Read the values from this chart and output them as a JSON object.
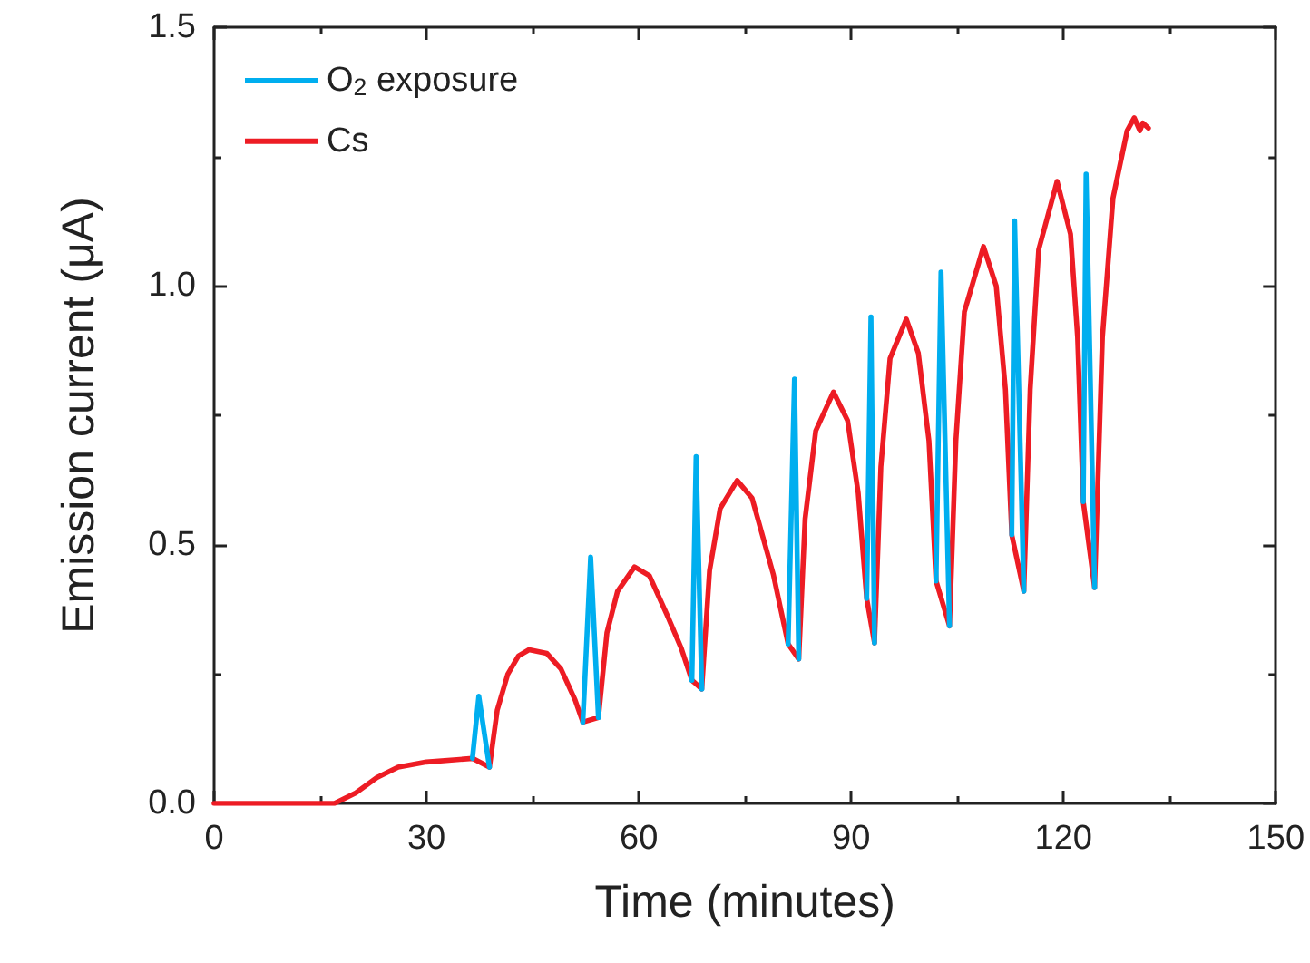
{
  "chart_data": {
    "type": "line",
    "xlabel": "Time (minutes)",
    "ylabel": "Emission current (μA)",
    "xlim": [
      0,
      150
    ],
    "xticks": [
      0,
      30,
      60,
      90,
      120,
      150
    ],
    "ylim": [
      0,
      1.5
    ],
    "yticks": [
      {
        "value": 0,
        "label": "0.0"
      },
      {
        "value": 0.5,
        "label": "0.5"
      },
      {
        "value": 1,
        "label": "1.0"
      },
      {
        "value": 1.5,
        "label": "1.5"
      }
    ],
    "grid": false,
    "legend": "top left",
    "marker": "none",
    "line_style": "solid",
    "series": [
      {
        "name": "O$_{2}$ exposure",
        "color": "#00aeef",
        "x": [
          36.5,
          37.4,
          38.9,
          45,
          52.1,
          53.2,
          54.3,
          60,
          67.5,
          68.1,
          68.9,
          75,
          81.1,
          82,
          82.6,
          88,
          92.2,
          92.8,
          93.3,
          98,
          102,
          102.7,
          103.9,
          108,
          112.7,
          113.1,
          114.4,
          119,
          122.8,
          123.2,
          124.4
        ],
        "values": [
          0.087,
          0.207,
          0.07,
          null,
          0.157,
          0.476,
          0.166,
          null,
          0.238,
          0.67,
          0.221,
          null,
          0.308,
          0.82,
          0.279,
          null,
          0.396,
          0.94,
          0.31,
          null,
          0.43,
          1.027,
          0.343,
          null,
          0.519,
          1.126,
          0.41,
          null,
          0.583,
          1.216,
          0.417
        ]
      },
      {
        "name": "Cs",
        "color": "#ed1c24",
        "x": [
          0,
          17,
          20,
          23,
          26,
          30,
          36.5,
          38.9,
          40,
          41.5,
          43,
          44.5,
          47,
          49,
          51,
          52.1,
          54.3,
          55.5,
          57,
          59.4,
          61.5,
          64.1,
          66,
          67.5,
          68.9,
          70,
          71.5,
          73.9,
          76,
          79,
          81.1,
          82.6,
          83.5,
          85,
          87.5,
          89.5,
          91,
          92.2,
          93.3,
          94.2,
          95.5,
          97.8,
          99.5,
          101,
          102,
          103.9,
          104.8,
          106,
          108.7,
          110.5,
          111.8,
          112.7,
          114.4,
          115.3,
          116.5,
          119.1,
          121,
          122,
          122.8,
          124.4,
          125.5,
          127,
          129,
          130,
          130.8,
          131.2,
          132
        ],
        "values": [
          0,
          0,
          0.02,
          0.05,
          0.07,
          0.08,
          0.087,
          0.07,
          0.18,
          0.25,
          0.285,
          0.297,
          0.29,
          0.26,
          0.2,
          0.157,
          0.166,
          0.33,
          0.41,
          0.457,
          0.44,
          0.361,
          0.3,
          0.238,
          0.221,
          0.45,
          0.57,
          0.624,
          0.59,
          0.443,
          0.308,
          0.279,
          0.55,
          0.72,
          0.795,
          0.74,
          0.6,
          0.396,
          0.31,
          0.65,
          0.86,
          0.936,
          0.87,
          0.7,
          0.43,
          0.343,
          0.7,
          0.95,
          1.076,
          1,
          0.8,
          0.519,
          0.41,
          0.8,
          1.07,
          1.202,
          1.1,
          0.9,
          0.583,
          0.417,
          0.9,
          1.17,
          1.3,
          1.325,
          1.3,
          1.315,
          1.305
        ]
      }
    ]
  }
}
